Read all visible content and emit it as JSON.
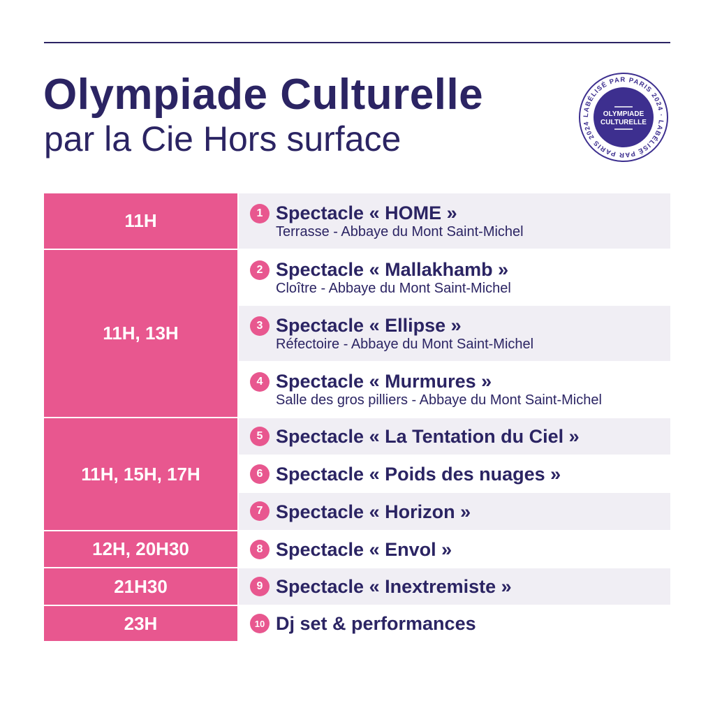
{
  "header": {
    "title": "Olympiade Culturelle",
    "subtitle": "par la Cie Hors surface"
  },
  "seal": {
    "center_text_1": "OLYMPIADE",
    "center_text_2": "CULTURELLE",
    "ring_text": "LABÉLISÉ PAR PARIS 2024 · LABÉLISÉ PAR PARIS 2024 ·"
  },
  "colors": {
    "pink": "#e8578f",
    "navy": "#2b2463",
    "row_alt": "#f0eef4"
  },
  "times": [
    "11H",
    "11H, 13H",
    "11H, 15H, 17H",
    "12H, 20H30",
    "21H30",
    "23H"
  ],
  "events": [
    {
      "num": "1",
      "title": "Spectacle « HOME »",
      "place": "Terrasse - Abbaye du Mont Saint-Michel"
    },
    {
      "num": "2",
      "title": "Spectacle « Mallakhamb »",
      "place": "Cloître - Abbaye du Mont Saint-Michel"
    },
    {
      "num": "3",
      "title": "Spectacle « Ellipse »",
      "place": "Réfectoire - Abbaye du Mont Saint-Michel"
    },
    {
      "num": "4",
      "title": "Spectacle « Murmures »",
      "place": "Salle des gros pilliers - Abbaye du Mont Saint-Michel"
    },
    {
      "num": "5",
      "title": "Spectacle « La Tentation du Ciel »"
    },
    {
      "num": "6",
      "title": "Spectacle « Poids des nuages »"
    },
    {
      "num": "7",
      "title": "Spectacle « Horizon »"
    },
    {
      "num": "8",
      "title": "Spectacle « Envol »"
    },
    {
      "num": "9",
      "title": "Spectacle « Inextremiste »"
    },
    {
      "num": "10",
      "title": "Dj set & performances"
    }
  ]
}
